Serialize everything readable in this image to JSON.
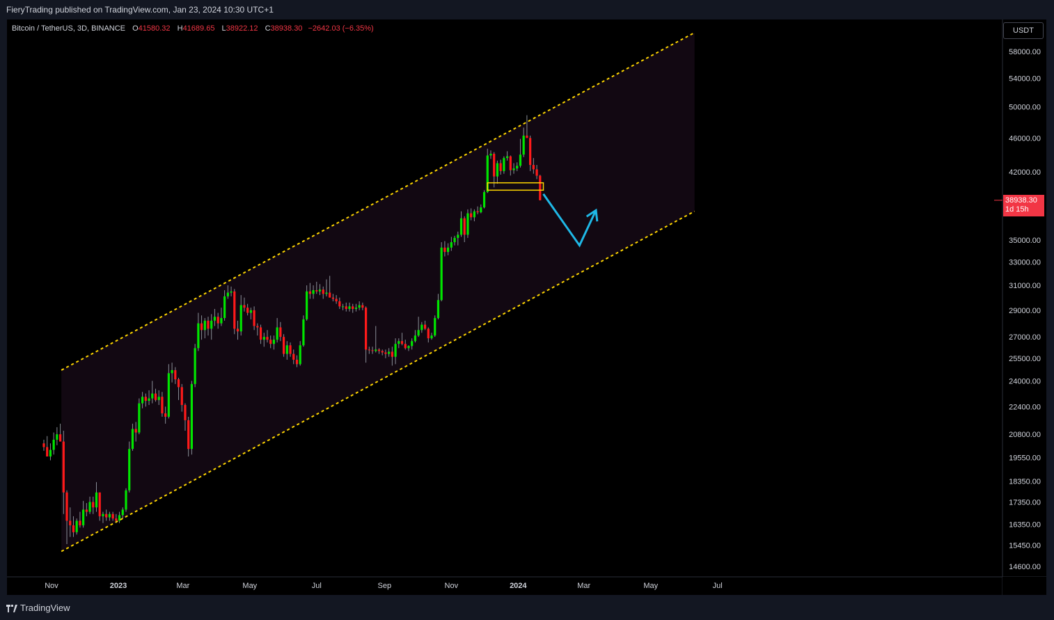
{
  "header": {
    "published": "FieryTrading published on TradingView.com, Jan 23, 2024 10:30 UTC+1"
  },
  "legend": {
    "symbol": "Bitcoin / TetherUS, 3D, BINANCE",
    "open_label": "O",
    "open": "41580.32",
    "high_label": "H",
    "high": "41689.65",
    "low_label": "L",
    "low": "38922.12",
    "close_label": "C",
    "close": "38938.30",
    "change": "−2642.03 (−6.35%)"
  },
  "price_scale": {
    "unit": "USDT",
    "current_price": "38938.30",
    "countdown": "1d 15h",
    "ticks": [
      "58000.00",
      "54000.00",
      "50000.00",
      "46000.00",
      "42000.00",
      "35000.00",
      "33000.00",
      "31000.00",
      "29000.00",
      "27000.00",
      "25500.00",
      "24000.00",
      "22400.00",
      "20800.00",
      "19550.00",
      "18350.00",
      "17350.00",
      "16350.00",
      "15450.00",
      "14600.00"
    ]
  },
  "time_axis": {
    "labels": [
      {
        "text": "Nov",
        "date": "2022-11-01",
        "bold": false
      },
      {
        "text": "2023",
        "date": "2023-01-01",
        "bold": true
      },
      {
        "text": "Mar",
        "date": "2023-03-01",
        "bold": false
      },
      {
        "text": "May",
        "date": "2023-05-01",
        "bold": false
      },
      {
        "text": "Jul",
        "date": "2023-07-01",
        "bold": false
      },
      {
        "text": "Sep",
        "date": "2023-09-01",
        "bold": false
      },
      {
        "text": "Nov",
        "date": "2023-11-01",
        "bold": false
      },
      {
        "text": "2024",
        "date": "2024-01-01",
        "bold": true
      },
      {
        "text": "Mar",
        "date": "2024-03-01",
        "bold": false
      },
      {
        "text": "May",
        "date": "2024-05-01",
        "bold": false
      },
      {
        "text": "Jul",
        "date": "2024-07-01",
        "bold": false
      }
    ]
  },
  "branding": {
    "logo_text": "TradingView"
  },
  "colors": {
    "background": "#000000",
    "frame": "#131722",
    "up": "#00e600",
    "down": "#ff1a1a",
    "channel_line": "#ffd600",
    "channel_fill": "#120812",
    "arrow": "#1fb8e6",
    "support_box": "#ffd600",
    "price_tag": "#f23645"
  },
  "chart_data": {
    "type": "candlestick",
    "log_scale": true,
    "grid": false,
    "ohlc": [
      [
        "2022-10-25",
        20300,
        20500,
        19900,
        20100
      ],
      [
        "2022-10-28",
        20100,
        20700,
        19800,
        19600
      ],
      [
        "2022-10-31",
        19600,
        20300,
        19400,
        19950
      ],
      [
        "2022-11-03",
        19950,
        20900,
        19700,
        20500
      ],
      [
        "2022-11-06",
        20500,
        21200,
        20200,
        20800
      ],
      [
        "2022-11-09",
        20800,
        21400,
        20600,
        20400
      ],
      [
        "2022-11-12",
        20400,
        21000,
        16800,
        17800
      ],
      [
        "2022-11-15",
        17800,
        17900,
        15500,
        16500
      ],
      [
        "2022-11-18",
        16500,
        17100,
        15800,
        16300
      ],
      [
        "2022-11-21",
        16300,
        16700,
        15800,
        16000
      ],
      [
        "2022-11-24",
        16000,
        16600,
        15900,
        16500
      ],
      [
        "2022-11-27",
        16500,
        16900,
        16200,
        16300
      ],
      [
        "2022-11-30",
        16300,
        17400,
        16200,
        17000
      ],
      [
        "2022-12-03",
        17000,
        17300,
        16700,
        16900
      ],
      [
        "2022-12-06",
        16900,
        17600,
        16800,
        17350
      ],
      [
        "2022-12-09",
        17350,
        17600,
        16800,
        17100
      ],
      [
        "2022-12-12",
        17100,
        18300,
        16900,
        17800
      ],
      [
        "2022-12-15",
        17800,
        17800,
        16500,
        16700
      ],
      [
        "2022-12-18",
        16700,
        16900,
        16400,
        16800
      ],
      [
        "2022-12-21",
        16800,
        17000,
        16500,
        16650
      ],
      [
        "2022-12-24",
        16650,
        16900,
        16500,
        16800
      ],
      [
        "2022-12-27",
        16800,
        16900,
        16500,
        16600
      ],
      [
        "2022-12-30",
        16600,
        16800,
        16400,
        16500
      ],
      [
        "2023-01-02",
        16500,
        16900,
        16400,
        16750
      ],
      [
        "2023-01-05",
        16750,
        17100,
        16600,
        17000
      ],
      [
        "2023-01-08",
        17000,
        18000,
        16900,
        17900
      ],
      [
        "2023-01-11",
        17900,
        20400,
        17800,
        20000
      ],
      [
        "2023-01-14",
        20000,
        21400,
        19900,
        21100
      ],
      [
        "2023-01-17",
        21100,
        21500,
        20400,
        20900
      ],
      [
        "2023-01-20",
        20900,
        22900,
        20800,
        22600
      ],
      [
        "2023-01-23",
        22600,
        23300,
        22300,
        23000
      ],
      [
        "2023-01-26",
        23000,
        23200,
        22400,
        22750
      ],
      [
        "2023-01-29",
        22750,
        23400,
        22500,
        22900
      ],
      [
        "2023-02-01",
        22900,
        24000,
        22600,
        23200
      ],
      [
        "2023-02-04",
        23200,
        23500,
        22700,
        22800
      ],
      [
        "2023-02-07",
        22800,
        23400,
        22500,
        23000
      ],
      [
        "2023-02-10",
        23000,
        23300,
        21800,
        22000
      ],
      [
        "2023-02-13",
        22000,
        22400,
        21400,
        21800
      ],
      [
        "2023-02-16",
        21800,
        25100,
        21700,
        24500
      ],
      [
        "2023-02-19",
        24500,
        25200,
        23900,
        24700
      ],
      [
        "2023-02-22",
        24700,
        24900,
        23800,
        24100
      ],
      [
        "2023-02-25",
        24100,
        24200,
        22800,
        23600
      ],
      [
        "2023-02-28",
        23600,
        23800,
        22100,
        22500
      ],
      [
        "2023-03-03",
        22500,
        22600,
        21000,
        21600
      ],
      [
        "2023-03-06",
        21600,
        21800,
        19600,
        20000
      ],
      [
        "2023-03-09",
        20000,
        24000,
        19700,
        23800
      ],
      [
        "2023-03-12",
        23800,
        26500,
        23600,
        26200
      ],
      [
        "2023-03-15",
        26200,
        28800,
        26000,
        28000
      ],
      [
        "2023-03-18",
        28000,
        28600,
        26800,
        27500
      ],
      [
        "2023-03-21",
        27500,
        28400,
        26900,
        28200
      ],
      [
        "2023-03-24",
        28200,
        28500,
        27100,
        27600
      ],
      [
        "2023-03-27",
        27600,
        28700,
        26800,
        28200
      ],
      [
        "2023-03-30",
        28200,
        29100,
        27800,
        28500
      ],
      [
        "2023-04-02",
        28500,
        28800,
        27600,
        28000
      ],
      [
        "2023-04-05",
        28000,
        29200,
        27800,
        28400
      ],
      [
        "2023-04-08",
        28400,
        30600,
        28200,
        30100
      ],
      [
        "2023-04-11",
        30100,
        31000,
        29900,
        30400
      ],
      [
        "2023-04-14",
        30400,
        30900,
        30100,
        30500
      ],
      [
        "2023-04-17",
        30500,
        30700,
        27200,
        27600
      ],
      [
        "2023-04-20",
        27600,
        28200,
        26800,
        27400
      ],
      [
        "2023-04-23",
        27400,
        30200,
        27100,
        29400
      ],
      [
        "2023-04-26",
        29400,
        30000,
        28900,
        29200
      ],
      [
        "2023-04-29",
        29200,
        29500,
        28600,
        28800
      ],
      [
        "2023-05-02",
        28800,
        29200,
        28300,
        29000
      ],
      [
        "2023-05-05",
        29000,
        29300,
        27500,
        27800
      ],
      [
        "2023-05-08",
        27800,
        28000,
        27100,
        27700
      ],
      [
        "2023-05-11",
        27700,
        27900,
        26500,
        26800
      ],
      [
        "2023-05-14",
        26800,
        27300,
        26300,
        27000
      ],
      [
        "2023-05-17",
        27000,
        27500,
        26600,
        26800
      ],
      [
        "2023-05-20",
        26800,
        27100,
        26200,
        26500
      ],
      [
        "2023-05-23",
        26500,
        27100,
        26100,
        26800
      ],
      [
        "2023-05-26",
        26800,
        28400,
        26600,
        27700
      ],
      [
        "2023-05-29",
        27700,
        28100,
        26700,
        27000
      ],
      [
        "2023-06-01",
        27000,
        27200,
        25600,
        25800
      ],
      [
        "2023-06-04",
        25800,
        26700,
        25400,
        26400
      ],
      [
        "2023-06-07",
        26400,
        26600,
        25600,
        25800
      ],
      [
        "2023-06-10",
        25800,
        26100,
        25100,
        25400
      ],
      [
        "2023-06-13",
        25400,
        25700,
        24900,
        25100
      ],
      [
        "2023-06-16",
        25100,
        26700,
        25000,
        26400
      ],
      [
        "2023-06-19",
        26400,
        28600,
        26300,
        28300
      ],
      [
        "2023-06-22",
        28300,
        31000,
        28200,
        30500
      ],
      [
        "2023-06-25",
        30500,
        31200,
        29900,
        30300
      ],
      [
        "2023-06-28",
        30300,
        31000,
        29900,
        30600
      ],
      [
        "2023-07-01",
        30600,
        31300,
        30300,
        30500
      ],
      [
        "2023-07-04",
        30500,
        31100,
        30200,
        30650
      ],
      [
        "2023-07-07",
        30650,
        30900,
        29900,
        30300
      ],
      [
        "2023-07-10",
        30300,
        31500,
        30100,
        30400
      ],
      [
        "2023-07-13",
        30400,
        31800,
        30200,
        30000
      ],
      [
        "2023-07-16",
        30000,
        30300,
        29700,
        29900
      ],
      [
        "2023-07-19",
        29900,
        30200,
        29500,
        29700
      ],
      [
        "2023-07-22",
        29700,
        30000,
        29100,
        29300
      ],
      [
        "2023-07-25",
        29300,
        29500,
        29000,
        29300
      ],
      [
        "2023-07-28",
        29300,
        29600,
        28900,
        29100
      ],
      [
        "2023-07-31",
        29100,
        29600,
        28900,
        29300
      ],
      [
        "2023-08-03",
        29300,
        29500,
        28800,
        29100
      ],
      [
        "2023-08-06",
        29100,
        29500,
        28900,
        29200
      ],
      [
        "2023-08-09",
        29200,
        29700,
        29000,
        29400
      ],
      [
        "2023-08-12",
        29400,
        29600,
        29000,
        29200
      ],
      [
        "2023-08-15",
        29200,
        29300,
        25200,
        26100
      ],
      [
        "2023-08-18",
        26100,
        26300,
        25800,
        26050
      ],
      [
        "2023-08-21",
        26050,
        26300,
        25800,
        26000
      ],
      [
        "2023-08-24",
        26000,
        27800,
        25900,
        26100
      ],
      [
        "2023-08-27",
        26100,
        26200,
        25800,
        26000
      ],
      [
        "2023-08-30",
        26000,
        26100,
        25700,
        25900
      ],
      [
        "2023-09-02",
        25900,
        26100,
        25500,
        25800
      ],
      [
        "2023-09-05",
        25800,
        26200,
        25600,
        25950
      ],
      [
        "2023-09-08",
        25950,
        26300,
        25000,
        25600
      ],
      [
        "2023-09-11",
        25600,
        26900,
        25100,
        26500
      ],
      [
        "2023-09-14",
        26500,
        26900,
        26200,
        26700
      ],
      [
        "2023-09-17",
        26700,
        27300,
        26400,
        26500
      ],
      [
        "2023-09-20",
        26500,
        26800,
        26100,
        26200
      ],
      [
        "2023-09-23",
        26200,
        26400,
        26000,
        26350
      ],
      [
        "2023-09-26",
        26350,
        26900,
        26100,
        26700
      ],
      [
        "2023-09-29",
        26700,
        27500,
        26600,
        27100
      ],
      [
        "2023-10-02",
        27100,
        28500,
        27000,
        27500
      ],
      [
        "2023-10-05",
        27500,
        28100,
        27300,
        27900
      ],
      [
        "2023-10-08",
        27900,
        28200,
        27500,
        27600
      ],
      [
        "2023-10-11",
        27600,
        27700,
        26600,
        26900
      ],
      [
        "2023-10-14",
        26900,
        27300,
        26800,
        27100
      ],
      [
        "2023-10-17",
        27100,
        28600,
        27000,
        28400
      ],
      [
        "2023-10-20",
        28400,
        30300,
        28300,
        29800
      ],
      [
        "2023-10-23",
        29800,
        34800,
        29700,
        34300
      ],
      [
        "2023-10-26",
        34300,
        34900,
        33500,
        33900
      ],
      [
        "2023-10-29",
        33900,
        34700,
        33600,
        34300
      ],
      [
        "2023-11-01",
        34300,
        35300,
        34000,
        34800
      ],
      [
        "2023-11-04",
        34800,
        35400,
        34500,
        35200
      ],
      [
        "2023-11-07",
        35200,
        35800,
        34500,
        35500
      ],
      [
        "2023-11-10",
        35500,
        37800,
        35300,
        37100
      ],
      [
        "2023-11-13",
        37100,
        37300,
        34800,
        35500
      ],
      [
        "2023-11-16",
        35500,
        38000,
        35200,
        37600
      ],
      [
        "2023-11-19",
        37600,
        38100,
        36900,
        37200
      ],
      [
        "2023-11-22",
        37200,
        38000,
        36800,
        37800
      ],
      [
        "2023-11-25",
        37800,
        38300,
        37500,
        37700
      ],
      [
        "2023-11-28",
        37700,
        38500,
        37600,
        38200
      ],
      [
        "2023-12-01",
        38200,
        40000,
        38100,
        39800
      ],
      [
        "2023-12-04",
        39800,
        44700,
        39700,
        43900
      ],
      [
        "2023-12-07",
        43900,
        44500,
        43500,
        44100
      ],
      [
        "2023-12-10",
        44100,
        44300,
        40300,
        41500
      ],
      [
        "2023-12-13",
        41500,
        43300,
        40700,
        43000
      ],
      [
        "2023-12-16",
        43000,
        43400,
        41700,
        42100
      ],
      [
        "2023-12-19",
        42100,
        43800,
        41800,
        43600
      ],
      [
        "2023-12-22",
        43600,
        44400,
        43300,
        43800
      ],
      [
        "2023-12-25",
        43800,
        43900,
        41600,
        42200
      ],
      [
        "2023-12-28",
        42200,
        43000,
        41800,
        42400
      ],
      [
        "2023-12-31",
        42400,
        43100,
        42100,
        42700
      ],
      [
        "2024-01-03",
        42700,
        45900,
        42500,
        44000
      ],
      [
        "2024-01-06",
        44000,
        47300,
        43700,
        46300
      ],
      [
        "2024-01-09",
        46300,
        48900,
        46100,
        46000
      ],
      [
        "2024-01-12",
        46000,
        46300,
        42100,
        42800
      ],
      [
        "2024-01-15",
        42800,
        43600,
        41800,
        42300
      ],
      [
        "2024-01-18",
        42300,
        42800,
        41200,
        41580.32
      ],
      [
        "2024-01-21",
        41580.32,
        41689.65,
        38922.12,
        38938.3
      ]
    ]
  },
  "drawings": {
    "channel": {
      "upper": {
        "from": [
          "2022-11-10",
          24700
        ],
        "to": [
          "2024-06-10",
          61000
        ]
      },
      "lower": {
        "from": [
          "2022-11-10",
          15200
        ],
        "to": [
          "2024-06-10",
          37800
        ]
      }
    },
    "support_box": {
      "from_date": "2023-12-04",
      "to_date": "2024-01-24",
      "top": 40800,
      "bottom": 40000
    },
    "arrow": [
      [
        "2024-01-24",
        39600
      ],
      [
        "2024-02-26",
        34500
      ],
      [
        "2024-03-12",
        37900
      ]
    ]
  }
}
